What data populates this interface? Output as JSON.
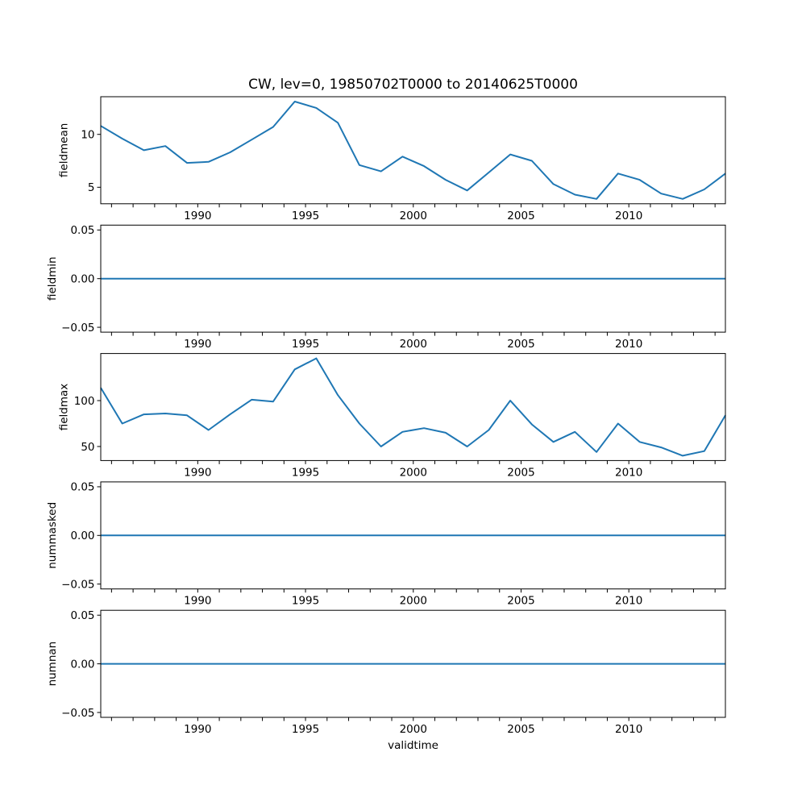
{
  "title": "CW, lev=0, 19850702T0000 to 20140625T0000",
  "xlabel": "validtime",
  "colors": {
    "line": "#1f77b4",
    "axis": "#000000",
    "text": "#000000",
    "background": "#ffffff"
  },
  "xticks": [
    {
      "value": 1990,
      "label": "1990"
    },
    {
      "value": 1995,
      "label": "1995"
    },
    {
      "value": 2000,
      "label": "2000"
    },
    {
      "value": 2005,
      "label": "2005"
    },
    {
      "value": 2010,
      "label": "2010"
    }
  ],
  "chart_data": [
    {
      "type": "line",
      "name": "fieldmean",
      "ylabel": "fieldmean",
      "xlim": [
        1985.5,
        2014.48
      ],
      "ylim": [
        3.44,
        13.56
      ],
      "grid": false,
      "legend": null,
      "yticks": [
        {
          "value": 5,
          "label": "5"
        },
        {
          "value": 10,
          "label": "10"
        }
      ],
      "x": [
        1985.5,
        1986.5,
        1987.5,
        1988.5,
        1989.5,
        1990.5,
        1991.5,
        1992.5,
        1993.5,
        1994.5,
        1995.5,
        1996.5,
        1997.5,
        1998.5,
        1999.5,
        2000.5,
        2001.5,
        2002.5,
        2003.5,
        2004.5,
        2005.5,
        2006.5,
        2007.5,
        2008.5,
        2009.5,
        2010.5,
        2011.5,
        2012.5,
        2013.5,
        2014.48
      ],
      "values": [
        10.8,
        9.6,
        8.5,
        8.9,
        7.3,
        7.4,
        8.3,
        9.5,
        10.7,
        13.1,
        12.5,
        11.1,
        7.1,
        6.5,
        7.9,
        7.0,
        5.7,
        4.7,
        6.4,
        8.1,
        7.5,
        5.3,
        4.3,
        3.9,
        6.3,
        5.7,
        4.4,
        3.9,
        4.8,
        6.3
      ]
    },
    {
      "type": "line",
      "name": "fieldmin",
      "ylabel": "fieldmin",
      "xlim": [
        1985.5,
        2014.48
      ],
      "ylim": [
        -0.055,
        0.055
      ],
      "grid": false,
      "legend": null,
      "yticks": [
        {
          "value": -0.05,
          "label": "−0.05"
        },
        {
          "value": 0,
          "label": "0.00"
        },
        {
          "value": 0.05,
          "label": "0.05"
        }
      ],
      "x": [
        1985.5,
        1986.5,
        1987.5,
        1988.5,
        1989.5,
        1990.5,
        1991.5,
        1992.5,
        1993.5,
        1994.5,
        1995.5,
        1996.5,
        1997.5,
        1998.5,
        1999.5,
        2000.5,
        2001.5,
        2002.5,
        2003.5,
        2004.5,
        2005.5,
        2006.5,
        2007.5,
        2008.5,
        2009.5,
        2010.5,
        2011.5,
        2012.5,
        2013.5,
        2014.48
      ],
      "values": [
        0,
        0,
        0,
        0,
        0,
        0,
        0,
        0,
        0,
        0,
        0,
        0,
        0,
        0,
        0,
        0,
        0,
        0,
        0,
        0,
        0,
        0,
        0,
        0,
        0,
        0,
        0,
        0,
        0,
        0
      ]
    },
    {
      "type": "line",
      "name": "fieldmax",
      "ylabel": "fieldmax",
      "xlim": [
        1985.5,
        2014.48
      ],
      "ylim": [
        34.7,
        151.3
      ],
      "grid": false,
      "legend": null,
      "yticks": [
        {
          "value": 50,
          "label": "50"
        },
        {
          "value": 100,
          "label": "100"
        }
      ],
      "x": [
        1985.5,
        1986.5,
        1987.5,
        1988.5,
        1989.5,
        1990.5,
        1991.5,
        1992.5,
        1993.5,
        1994.5,
        1995.5,
        1996.5,
        1997.5,
        1998.5,
        1999.5,
        2000.5,
        2001.5,
        2002.5,
        2003.5,
        2004.5,
        2005.5,
        2006.5,
        2007.5,
        2008.5,
        2009.5,
        2010.5,
        2011.5,
        2012.5,
        2013.5,
        2014.48
      ],
      "values": [
        114,
        75,
        85,
        86,
        84,
        68,
        85,
        101,
        99,
        134,
        146,
        106,
        75,
        50,
        66,
        70,
        65,
        50,
        68,
        100,
        74,
        55,
        66,
        44,
        75,
        55,
        49,
        40,
        45,
        84
      ]
    },
    {
      "type": "line",
      "name": "nummasked",
      "ylabel": "nummasked",
      "xlim": [
        1985.5,
        2014.48
      ],
      "ylim": [
        -0.055,
        0.055
      ],
      "grid": false,
      "legend": null,
      "yticks": [
        {
          "value": -0.05,
          "label": "−0.05"
        },
        {
          "value": 0,
          "label": "0.00"
        },
        {
          "value": 0.05,
          "label": "0.05"
        }
      ],
      "x": [
        1985.5,
        1986.5,
        1987.5,
        1988.5,
        1989.5,
        1990.5,
        1991.5,
        1992.5,
        1993.5,
        1994.5,
        1995.5,
        1996.5,
        1997.5,
        1998.5,
        1999.5,
        2000.5,
        2001.5,
        2002.5,
        2003.5,
        2004.5,
        2005.5,
        2006.5,
        2007.5,
        2008.5,
        2009.5,
        2010.5,
        2011.5,
        2012.5,
        2013.5,
        2014.48
      ],
      "values": [
        0,
        0,
        0,
        0,
        0,
        0,
        0,
        0,
        0,
        0,
        0,
        0,
        0,
        0,
        0,
        0,
        0,
        0,
        0,
        0,
        0,
        0,
        0,
        0,
        0,
        0,
        0,
        0,
        0,
        0
      ]
    },
    {
      "type": "line",
      "name": "numnan",
      "ylabel": "numnan",
      "xlim": [
        1985.5,
        2014.48
      ],
      "ylim": [
        -0.055,
        0.055
      ],
      "grid": false,
      "legend": null,
      "yticks": [
        {
          "value": -0.05,
          "label": "−0.05"
        },
        {
          "value": 0,
          "label": "0.00"
        },
        {
          "value": 0.05,
          "label": "0.05"
        }
      ],
      "x": [
        1985.5,
        1986.5,
        1987.5,
        1988.5,
        1989.5,
        1990.5,
        1991.5,
        1992.5,
        1993.5,
        1994.5,
        1995.5,
        1996.5,
        1997.5,
        1998.5,
        1999.5,
        2000.5,
        2001.5,
        2002.5,
        2003.5,
        2004.5,
        2005.5,
        2006.5,
        2007.5,
        2008.5,
        2009.5,
        2010.5,
        2011.5,
        2012.5,
        2013.5,
        2014.48
      ],
      "values": [
        0,
        0,
        0,
        0,
        0,
        0,
        0,
        0,
        0,
        0,
        0,
        0,
        0,
        0,
        0,
        0,
        0,
        0,
        0,
        0,
        0,
        0,
        0,
        0,
        0,
        0,
        0,
        0,
        0,
        0
      ]
    }
  ]
}
